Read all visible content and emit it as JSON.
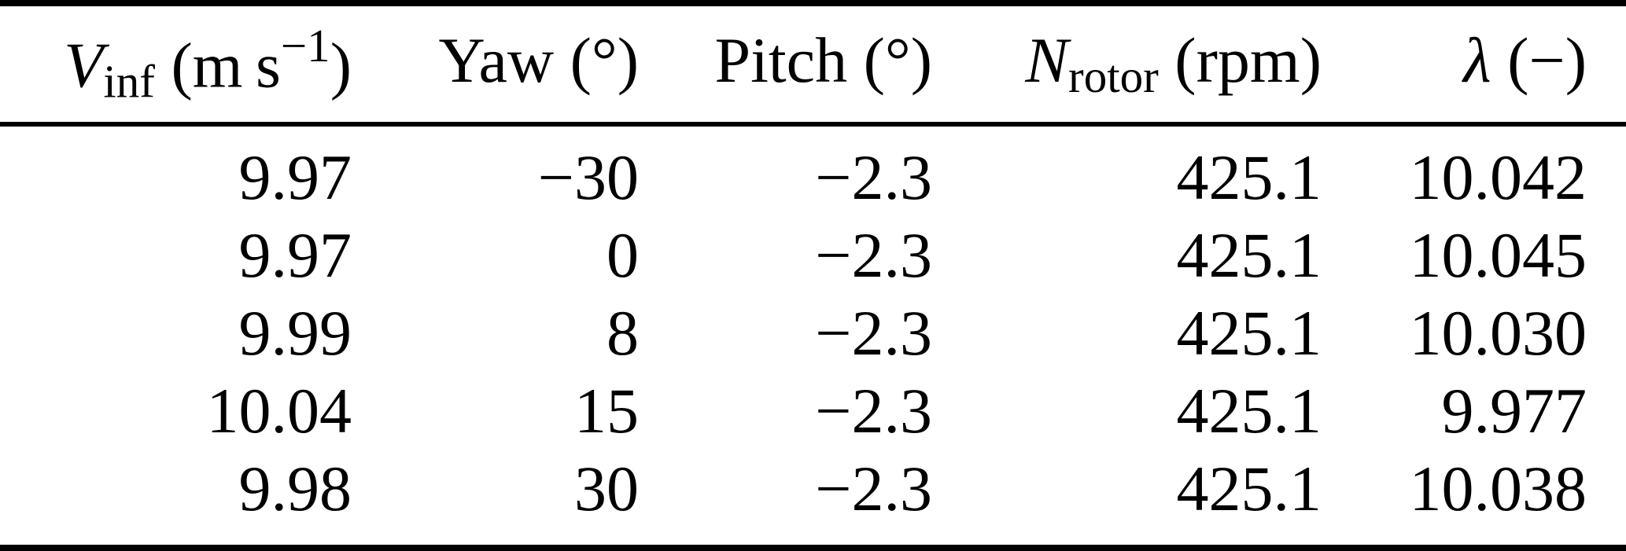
{
  "colors": {
    "text": "#000000",
    "background": "#ffffff",
    "rule": "#000000"
  },
  "table": {
    "columns": [
      {
        "sym": "V",
        "sub": "inf",
        "pre": " (m s",
        "sup": "−1",
        "post": ")"
      },
      {
        "sym": "Yaw",
        "sub": "",
        "pre": " (°)",
        "sup": "",
        "post": ""
      },
      {
        "sym": "Pitch",
        "sub": "",
        "pre": " (°)",
        "sup": "",
        "post": ""
      },
      {
        "sym": "N",
        "sub": "rotor",
        "pre": " (rpm)",
        "sup": "",
        "post": ""
      },
      {
        "sym": "λ",
        "sub": "",
        "pre": " (−)",
        "sup": "",
        "post": ""
      }
    ],
    "rows": [
      [
        "9.97",
        "−30",
        "−2.3",
        "425.1",
        "10.042"
      ],
      [
        "9.97",
        "0",
        "−2.3",
        "425.1",
        "10.045"
      ],
      [
        "9.99",
        "8",
        "−2.3",
        "425.1",
        "10.030"
      ],
      [
        "10.04",
        "15",
        "−2.3",
        "425.1",
        "9.977"
      ],
      [
        "9.98",
        "30",
        "−2.3",
        "425.1",
        "10.038"
      ]
    ]
  }
}
